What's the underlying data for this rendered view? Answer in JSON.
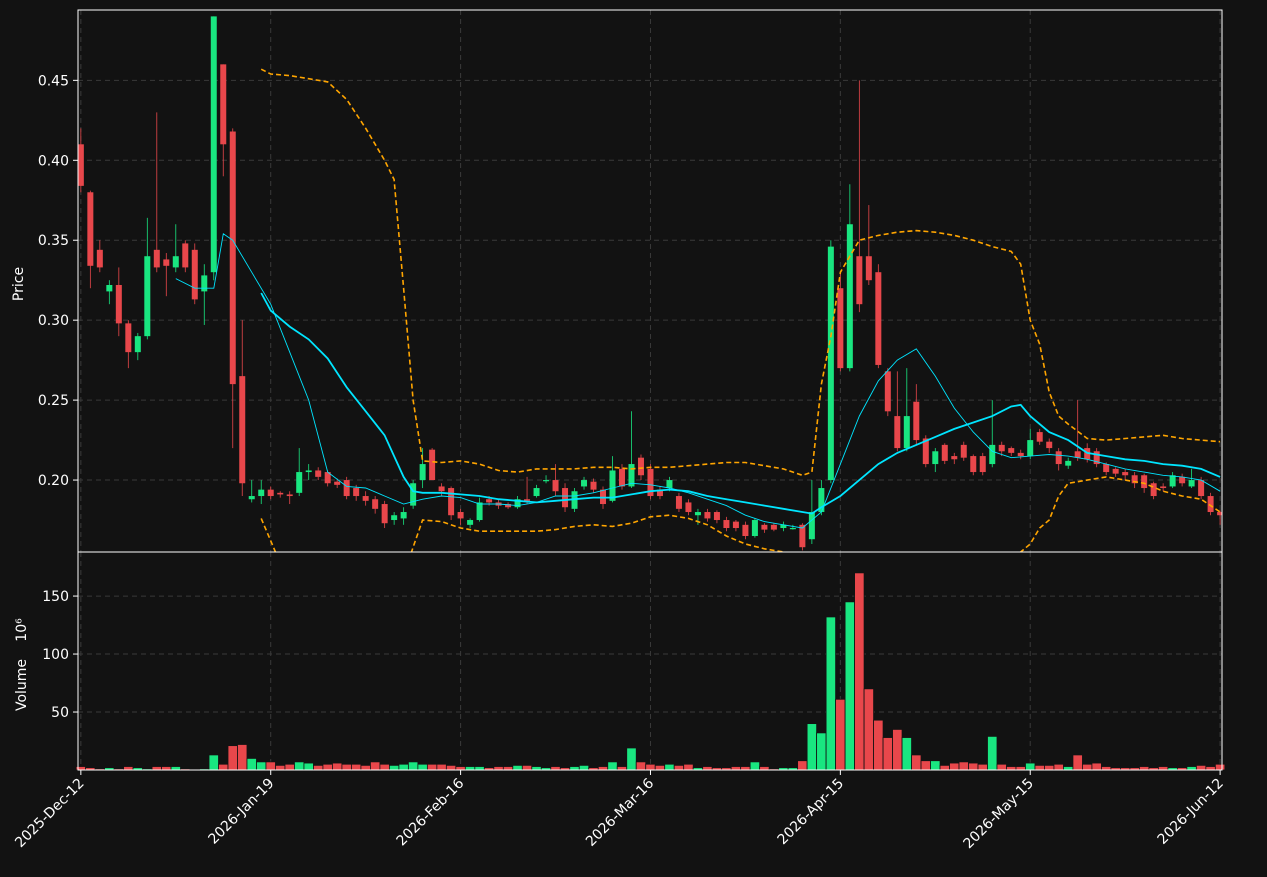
{
  "chart_data": {
    "type": "candlestick",
    "y_label": "Price",
    "grid": true,
    "up_color": "#19e680",
    "down_color": "#e8474b",
    "xlim": [
      -0.3,
      120.2
    ],
    "xticks": [
      {
        "value": 0,
        "label": "2025-Dec-12"
      },
      {
        "value": 20,
        "label": "2026-Jan-19"
      },
      {
        "value": 40,
        "label": "2026-Feb-16"
      },
      {
        "value": 60,
        "label": "2026-Mar-16"
      },
      {
        "value": 80,
        "label": "2026-Apr-15"
      },
      {
        "value": 100,
        "label": "2026-May-15"
      },
      {
        "value": 120,
        "label": "2026-Jun-12"
      }
    ],
    "ylim": [
      0.155,
      0.494
    ],
    "yticks": [
      {
        "value": 0.2,
        "label": "0.20"
      },
      {
        "value": 0.25,
        "label": "0.25"
      },
      {
        "value": 0.3,
        "label": "0.30"
      },
      {
        "value": 0.35,
        "label": "0.35"
      },
      {
        "value": 0.4,
        "label": "0.40"
      },
      {
        "value": 0.45,
        "label": "0.45"
      }
    ],
    "ohlc": [
      [
        0.41,
        0.42,
        0.38,
        0.384
      ],
      [
        0.38,
        0.381,
        0.32,
        0.334
      ],
      [
        0.344,
        0.35,
        0.33,
        0.333
      ],
      [
        0.318,
        0.325,
        0.31,
        0.322
      ],
      [
        0.322,
        0.333,
        0.29,
        0.298
      ],
      [
        0.298,
        0.3,
        0.27,
        0.28
      ],
      [
        0.28,
        0.292,
        0.275,
        0.29
      ],
      [
        0.29,
        0.364,
        0.288,
        0.34
      ],
      [
        0.344,
        0.43,
        0.33,
        0.333
      ],
      [
        0.338,
        0.342,
        0.315,
        0.334
      ],
      [
        0.333,
        0.36,
        0.33,
        0.34
      ],
      [
        0.348,
        0.35,
        0.33,
        0.333
      ],
      [
        0.344,
        0.348,
        0.31,
        0.313
      ],
      [
        0.318,
        0.335,
        0.297,
        0.328
      ],
      [
        0.33,
        0.49,
        0.325,
        0.49
      ],
      [
        0.46,
        0.46,
        0.39,
        0.41
      ],
      [
        0.418,
        0.42,
        0.22,
        0.26
      ],
      [
        0.265,
        0.3,
        0.19,
        0.198
      ],
      [
        0.188,
        0.2,
        0.186,
        0.19
      ],
      [
        0.19,
        0.2,
        0.185,
        0.194
      ],
      [
        0.194,
        0.196,
        0.188,
        0.19
      ],
      [
        0.192,
        0.193,
        0.189,
        0.191
      ],
      [
        0.191,
        0.193,
        0.185,
        0.19
      ],
      [
        0.192,
        0.22,
        0.19,
        0.205
      ],
      [
        0.205,
        0.21,
        0.2,
        0.206
      ],
      [
        0.206,
        0.208,
        0.2,
        0.202
      ],
      [
        0.205,
        0.206,
        0.196,
        0.198
      ],
      [
        0.199,
        0.201,
        0.195,
        0.197
      ],
      [
        0.2,
        0.202,
        0.188,
        0.19
      ],
      [
        0.195,
        0.197,
        0.187,
        0.19
      ],
      [
        0.19,
        0.193,
        0.184,
        0.187
      ],
      [
        0.188,
        0.19,
        0.179,
        0.182
      ],
      [
        0.185,
        0.187,
        0.17,
        0.173
      ],
      [
        0.175,
        0.18,
        0.172,
        0.178
      ],
      [
        0.176,
        0.183,
        0.172,
        0.18
      ],
      [
        0.184,
        0.2,
        0.182,
        0.198
      ],
      [
        0.2,
        0.22,
        0.195,
        0.21
      ],
      [
        0.219,
        0.22,
        0.2,
        0.2
      ],
      [
        0.196,
        0.198,
        0.19,
        0.193
      ],
      [
        0.195,
        0.196,
        0.175,
        0.178
      ],
      [
        0.18,
        0.182,
        0.172,
        0.176
      ],
      [
        0.172,
        0.176,
        0.17,
        0.175
      ],
      [
        0.175,
        0.189,
        0.174,
        0.186
      ],
      [
        0.188,
        0.19,
        0.184,
        0.186
      ],
      [
        0.186,
        0.188,
        0.182,
        0.184
      ],
      [
        0.185,
        0.186,
        0.182,
        0.183
      ],
      [
        0.183,
        0.19,
        0.182,
        0.188
      ],
      [
        0.188,
        0.202,
        0.185,
        0.187
      ],
      [
        0.19,
        0.197,
        0.189,
        0.195
      ],
      [
        0.2,
        0.203,
        0.198,
        0.2
      ],
      [
        0.2,
        0.21,
        0.19,
        0.193
      ],
      [
        0.195,
        0.198,
        0.18,
        0.183
      ],
      [
        0.182,
        0.195,
        0.18,
        0.193
      ],
      [
        0.196,
        0.202,
        0.194,
        0.2
      ],
      [
        0.199,
        0.201,
        0.192,
        0.194
      ],
      [
        0.194,
        0.196,
        0.182,
        0.185
      ],
      [
        0.187,
        0.215,
        0.186,
        0.206
      ],
      [
        0.207,
        0.21,
        0.194,
        0.196
      ],
      [
        0.196,
        0.243,
        0.195,
        0.21
      ],
      [
        0.214,
        0.216,
        0.2,
        0.203
      ],
      [
        0.207,
        0.21,
        0.188,
        0.19
      ],
      [
        0.194,
        0.196,
        0.188,
        0.19
      ],
      [
        0.195,
        0.202,
        0.193,
        0.2
      ],
      [
        0.19,
        0.192,
        0.18,
        0.182
      ],
      [
        0.186,
        0.188,
        0.178,
        0.18
      ],
      [
        0.178,
        0.182,
        0.172,
        0.18
      ],
      [
        0.18,
        0.182,
        0.174,
        0.176
      ],
      [
        0.18,
        0.181,
        0.173,
        0.175
      ],
      [
        0.175,
        0.177,
        0.168,
        0.17
      ],
      [
        0.174,
        0.175,
        0.168,
        0.17
      ],
      [
        0.172,
        0.174,
        0.163,
        0.165
      ],
      [
        0.165,
        0.176,
        0.164,
        0.175
      ],
      [
        0.172,
        0.173,
        0.167,
        0.169
      ],
      [
        0.172,
        0.173,
        0.168,
        0.169
      ],
      [
        0.17,
        0.174,
        0.168,
        0.172
      ],
      [
        0.17,
        0.172,
        0.169,
        0.17
      ],
      [
        0.172,
        0.173,
        0.156,
        0.158
      ],
      [
        0.163,
        0.2,
        0.16,
        0.18
      ],
      [
        0.18,
        0.2,
        0.178,
        0.195
      ],
      [
        0.2,
        0.35,
        0.198,
        0.346
      ],
      [
        0.32,
        0.33,
        0.268,
        0.27
      ],
      [
        0.27,
        0.385,
        0.268,
        0.36
      ],
      [
        0.34,
        0.45,
        0.305,
        0.31
      ],
      [
        0.34,
        0.372,
        0.322,
        0.325
      ],
      [
        0.33,
        0.335,
        0.27,
        0.272
      ],
      [
        0.268,
        0.27,
        0.24,
        0.243
      ],
      [
        0.24,
        0.268,
        0.218,
        0.22
      ],
      [
        0.22,
        0.27,
        0.218,
        0.24
      ],
      [
        0.249,
        0.26,
        0.222,
        0.225
      ],
      [
        0.226,
        0.228,
        0.208,
        0.21
      ],
      [
        0.21,
        0.22,
        0.205,
        0.218
      ],
      [
        0.222,
        0.223,
        0.21,
        0.212
      ],
      [
        0.215,
        0.217,
        0.21,
        0.213
      ],
      [
        0.222,
        0.224,
        0.212,
        0.214
      ],
      [
        0.215,
        0.216,
        0.203,
        0.205
      ],
      [
        0.215,
        0.217,
        0.203,
        0.205
      ],
      [
        0.21,
        0.25,
        0.208,
        0.222
      ],
      [
        0.222,
        0.224,
        0.215,
        0.218
      ],
      [
        0.22,
        0.221,
        0.215,
        0.217
      ],
      [
        0.217,
        0.219,
        0.213,
        0.215
      ],
      [
        0.215,
        0.232,
        0.213,
        0.225
      ],
      [
        0.23,
        0.232,
        0.222,
        0.224
      ],
      [
        0.224,
        0.226,
        0.217,
        0.22
      ],
      [
        0.218,
        0.22,
        0.206,
        0.21
      ],
      [
        0.209,
        0.214,
        0.207,
        0.212
      ],
      [
        0.218,
        0.25,
        0.212,
        0.214
      ],
      [
        0.22,
        0.223,
        0.211,
        0.213
      ],
      [
        0.218,
        0.22,
        0.208,
        0.21
      ],
      [
        0.21,
        0.211,
        0.203,
        0.205
      ],
      [
        0.207,
        0.208,
        0.202,
        0.204
      ],
      [
        0.205,
        0.207,
        0.2,
        0.203
      ],
      [
        0.203,
        0.205,
        0.195,
        0.198
      ],
      [
        0.203,
        0.204,
        0.192,
        0.195
      ],
      [
        0.198,
        0.199,
        0.188,
        0.19
      ],
      [
        0.196,
        0.198,
        0.193,
        0.195
      ],
      [
        0.196,
        0.205,
        0.195,
        0.203
      ],
      [
        0.202,
        0.204,
        0.196,
        0.198
      ],
      [
        0.196,
        0.207,
        0.195,
        0.2
      ],
      [
        0.2,
        0.202,
        0.188,
        0.19
      ],
      [
        0.19,
        0.192,
        0.178,
        0.18
      ],
      [
        0.18,
        0.181,
        0.172,
        0.178
      ]
    ],
    "lines": [
      {
        "color": "#00e5ff",
        "width": 0.9,
        "x": [
          10,
          12,
          14,
          15,
          16,
          18,
          20,
          22,
          24,
          26,
          28,
          30,
          32,
          34,
          36,
          38,
          40,
          42,
          44,
          46,
          48,
          50,
          52,
          54,
          56,
          58,
          60,
          62,
          64,
          66,
          68,
          70,
          72,
          74,
          76,
          78,
          80,
          82,
          84,
          86,
          88,
          90,
          92,
          94,
          96,
          98,
          100,
          102,
          104,
          106,
          108,
          110,
          112,
          114,
          116,
          118,
          120
        ],
        "values": [
          0.326,
          0.32,
          0.32,
          0.354,
          0.35,
          0.33,
          0.31,
          0.28,
          0.25,
          0.205,
          0.196,
          0.195,
          0.19,
          0.185,
          0.188,
          0.19,
          0.189,
          0.185,
          0.185,
          0.184,
          0.186,
          0.19,
          0.19,
          0.192,
          0.195,
          0.198,
          0.197,
          0.195,
          0.192,
          0.188,
          0.184,
          0.178,
          0.174,
          0.172,
          0.17,
          0.18,
          0.21,
          0.24,
          0.262,
          0.275,
          0.282,
          0.265,
          0.245,
          0.23,
          0.218,
          0.214,
          0.215,
          0.216,
          0.215,
          0.213,
          0.21,
          0.207,
          0.205,
          0.203,
          0.202,
          0.2,
          0.193
        ]
      },
      {
        "color": "#00e5ff",
        "width": 1.8,
        "x": [
          19,
          20,
          22,
          24,
          26,
          28,
          30,
          32,
          33,
          34,
          35,
          36,
          38,
          40,
          42,
          44,
          46,
          48,
          50,
          52,
          54,
          56,
          58,
          60,
          62,
          64,
          66,
          68,
          70,
          72,
          74,
          76,
          77,
          78,
          80,
          82,
          84,
          86,
          88,
          90,
          92,
          94,
          96,
          98,
          99,
          100,
          102,
          104,
          106,
          108,
          110,
          112,
          114,
          116,
          118,
          120
        ],
        "values": [
          0.317,
          0.306,
          0.296,
          0.288,
          0.276,
          0.258,
          0.243,
          0.228,
          0.215,
          0.202,
          0.193,
          0.192,
          0.192,
          0.191,
          0.19,
          0.188,
          0.187,
          0.186,
          0.187,
          0.188,
          0.189,
          0.189,
          0.191,
          0.193,
          0.194,
          0.193,
          0.19,
          0.188,
          0.186,
          0.184,
          0.182,
          0.18,
          0.179,
          0.183,
          0.19,
          0.2,
          0.21,
          0.217,
          0.222,
          0.227,
          0.232,
          0.236,
          0.24,
          0.246,
          0.247,
          0.24,
          0.23,
          0.225,
          0.217,
          0.215,
          0.213,
          0.212,
          0.21,
          0.209,
          0.207,
          0.202
        ]
      },
      {
        "color": "#ffa500",
        "width": 1.6,
        "dash": true,
        "x": [
          19,
          20,
          22,
          24,
          26,
          28,
          30,
          32,
          33,
          34,
          35,
          36,
          38,
          40,
          42,
          44,
          46,
          48,
          50,
          52,
          54,
          56,
          58,
          60,
          62,
          64,
          66,
          68,
          70,
          72,
          74,
          76,
          77,
          78,
          79,
          80,
          82,
          84,
          86,
          88,
          90,
          92,
          94,
          96,
          98,
          99,
          100,
          101,
          102,
          103,
          104,
          106,
          108,
          110,
          112,
          114,
          116,
          118,
          120
        ],
        "values": [
          0.457,
          0.454,
          0.453,
          0.451,
          0.449,
          0.438,
          0.42,
          0.4,
          0.388,
          0.32,
          0.25,
          0.212,
          0.211,
          0.212,
          0.21,
          0.206,
          0.205,
          0.207,
          0.207,
          0.207,
          0.208,
          0.208,
          0.207,
          0.208,
          0.208,
          0.209,
          0.21,
          0.211,
          0.211,
          0.209,
          0.207,
          0.203,
          0.205,
          0.26,
          0.29,
          0.33,
          0.35,
          0.353,
          0.355,
          0.356,
          0.355,
          0.353,
          0.35,
          0.346,
          0.343,
          0.335,
          0.3,
          0.285,
          0.255,
          0.24,
          0.235,
          0.226,
          0.225,
          0.226,
          0.227,
          0.228,
          0.226,
          0.225,
          0.224
        ]
      },
      {
        "color": "#ffa500",
        "width": 1.6,
        "dash": true,
        "x": [
          19,
          20,
          21,
          22,
          33,
          34,
          35,
          36,
          38,
          40,
          42,
          44,
          46,
          48,
          50,
          52,
          54,
          56,
          58,
          60,
          62,
          64,
          66,
          68,
          70,
          72,
          74,
          76,
          77,
          78,
          79,
          98,
          99,
          100,
          101,
          102,
          103,
          104,
          106,
          108,
          110,
          112,
          114,
          116,
          118,
          120
        ],
        "values": [
          0.176,
          0.162,
          0.148,
          0.135,
          null,
          0.14,
          0.158,
          0.175,
          0.174,
          0.17,
          0.168,
          0.168,
          0.168,
          0.168,
          0.169,
          0.171,
          0.172,
          0.171,
          0.173,
          0.177,
          0.178,
          0.176,
          0.172,
          0.165,
          0.16,
          0.157,
          0.155,
          0.153,
          0.15,
          0.13,
          null,
          0.13,
          0.155,
          0.16,
          0.17,
          0.175,
          0.19,
          0.198,
          0.2,
          0.202,
          0.2,
          0.198,
          0.193,
          0.19,
          0.188,
          0.18
        ]
      }
    ],
    "volume": {
      "label": "Volume",
      "offset_label": "10⁶",
      "ylim": [
        0,
        188
      ],
      "yticks": [
        50,
        100,
        150
      ],
      "values": [
        3,
        2,
        1,
        2,
        1,
        3,
        2,
        1,
        3,
        3,
        3,
        1,
        0.5,
        1,
        13,
        5,
        21,
        22,
        10,
        7,
        7,
        4,
        5,
        7,
        6,
        4,
        5,
        6,
        5,
        5,
        4,
        7,
        5,
        4,
        5,
        7,
        5,
        5,
        5,
        4,
        3,
        3,
        3,
        2,
        3,
        3,
        4,
        4,
        3,
        2,
        3,
        2,
        3,
        4,
        2,
        3,
        7,
        3,
        19,
        7,
        5,
        4,
        5,
        4,
        5,
        2,
        3,
        2,
        2,
        3,
        3,
        7,
        3,
        1,
        2,
        2,
        8,
        40,
        32,
        132,
        61,
        145,
        170,
        70,
        43,
        28,
        35,
        28,
        13,
        8,
        8,
        4,
        6,
        7,
        6,
        5,
        29,
        5,
        3,
        3,
        6,
        4,
        4,
        5,
        3,
        13,
        5,
        6,
        3,
        2,
        2,
        2,
        3,
        2,
        3,
        2,
        2,
        3,
        4,
        3,
        5
      ]
    }
  }
}
